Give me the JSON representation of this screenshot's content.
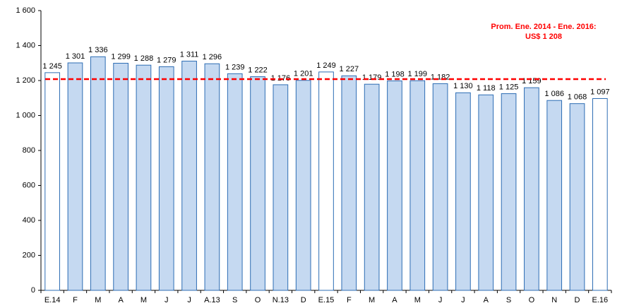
{
  "chart_data": {
    "type": "bar",
    "categories": [
      "E.14",
      "F",
      "M",
      "A",
      "M",
      "J",
      "J",
      "A.13",
      "S",
      "O",
      "N.13",
      "D",
      "E.15",
      "F",
      "M",
      "A",
      "M",
      "J",
      "J",
      "A",
      "S",
      "O",
      "N",
      "D",
      "E.16"
    ],
    "values": [
      1245,
      1301,
      1336,
      1299,
      1288,
      1279,
      1311,
      1296,
      1239,
      1222,
      1176,
      1201,
      1249,
      1227,
      1179,
      1198,
      1199,
      1182,
      1130,
      1118,
      1125,
      1159,
      1086,
      1068,
      1097
    ],
    "value_labels": [
      "1 245",
      "1 301",
      "1 336",
      "1 299",
      "1 288",
      "1 279",
      "1 311",
      "1 296",
      "1 239",
      "1 222",
      "1 176",
      "1 201",
      "1 249",
      "1 227",
      "1 179",
      "1 198",
      "1 199",
      "1 182",
      "1 130",
      "1 118",
      "1 125",
      "1 159",
      "1 086",
      "1 068",
      "1 097"
    ],
    "colors": [
      "#ffffff",
      "#c5d9f1",
      "#c5d9f1",
      "#c5d9f1",
      "#c5d9f1",
      "#c5d9f1",
      "#c5d9f1",
      "#c5d9f1",
      "#c5d9f1",
      "#c5d9f1",
      "#c5d9f1",
      "#c5d9f1",
      "#ffffff",
      "#c5d9f1",
      "#c5d9f1",
      "#c5d9f1",
      "#c5d9f1",
      "#c5d9f1",
      "#c5d9f1",
      "#c5d9f1",
      "#c5d9f1",
      "#c5d9f1",
      "#c5d9f1",
      "#c5d9f1",
      "#ffffff"
    ],
    "edge_color": "#2e6db4",
    "ylim": [
      0,
      1600
    ],
    "yticks": [
      0,
      {
        "value": 200,
        "label": "200"
      },
      400,
      600,
      800,
      {
        "value": 1000,
        "label": "1 000"
      },
      {
        "value": 1200,
        "label": "1 200"
      },
      {
        "value": 1400,
        "label": "1 400"
      },
      {
        "value": 1600,
        "label": "1 600"
      }
    ],
    "reference_line": {
      "value": 1208,
      "color": "#ff0000"
    },
    "annotation": [
      "Prom.  Ene. 2014 - Ene. 2016:",
      "US$ 1 208"
    ]
  }
}
